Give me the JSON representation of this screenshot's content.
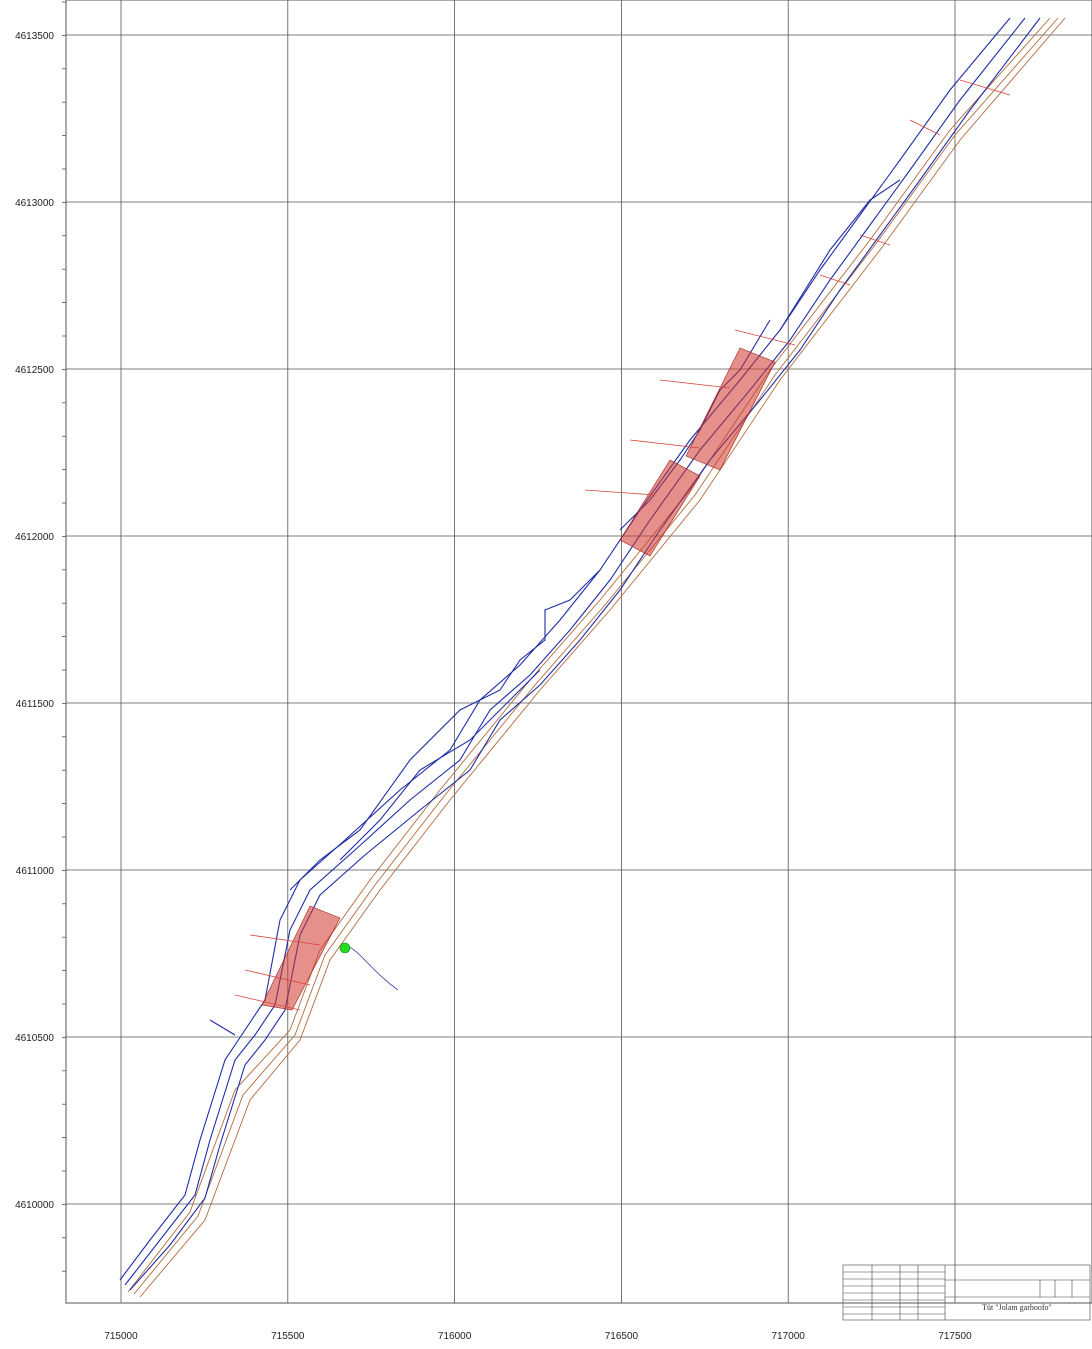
{
  "map": {
    "x_ticks": [
      "715000",
      "715500",
      "716000",
      "716500",
      "717000",
      "717500"
    ],
    "y_ticks": [
      "4613500",
      "4613000",
      "4612500",
      "4612000",
      "4611500",
      "4611000",
      "4610500",
      "4610000"
    ],
    "x_range": [
      715000,
      717500
    ],
    "y_range": [
      4610000,
      4613500
    ],
    "grid": true,
    "marker": {
      "label": "green-marker",
      "color": "#22dd22"
    },
    "colors": {
      "grid": "#555555",
      "road": "#1f2ea6",
      "boundary": "#b56a3a",
      "hatch": "#d0342c",
      "cross": "#d6453b",
      "marker": "#22dd22"
    }
  },
  "title_block": {
    "title": "Tüt \"Jolam garhoofo\""
  }
}
